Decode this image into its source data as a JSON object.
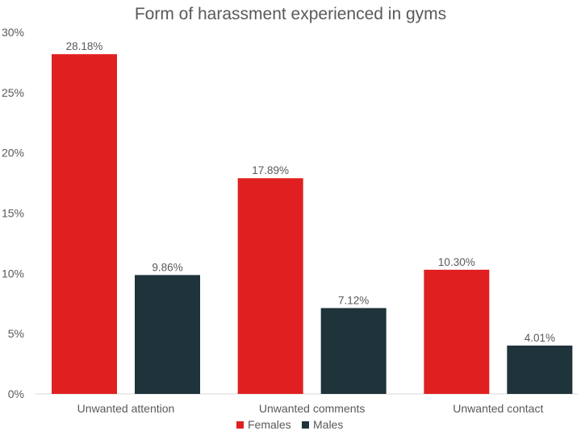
{
  "chart_data": {
    "type": "bar",
    "title": "Form of harassment experienced in gyms",
    "categories": [
      "Unwanted attention",
      "Unwanted comments",
      "Unwanted contact"
    ],
    "series": [
      {
        "name": "Females",
        "color": "#e02020",
        "values": [
          28.18,
          17.89,
          10.3
        ],
        "labels": [
          "28.18%",
          "17.89%",
          "10.30%"
        ]
      },
      {
        "name": "Males",
        "color": "#1e333a",
        "values": [
          9.86,
          7.12,
          4.01
        ],
        "labels": [
          "9.86%",
          "7.12%",
          "4.01%"
        ]
      }
    ],
    "ylim": [
      0,
      30
    ],
    "yticks": [
      0,
      5,
      10,
      15,
      20,
      25,
      30
    ],
    "ytick_labels": [
      "0%",
      "5%",
      "10%",
      "15%",
      "20%",
      "25%",
      "30%"
    ],
    "grid": false,
    "legend_position": "bottom"
  }
}
